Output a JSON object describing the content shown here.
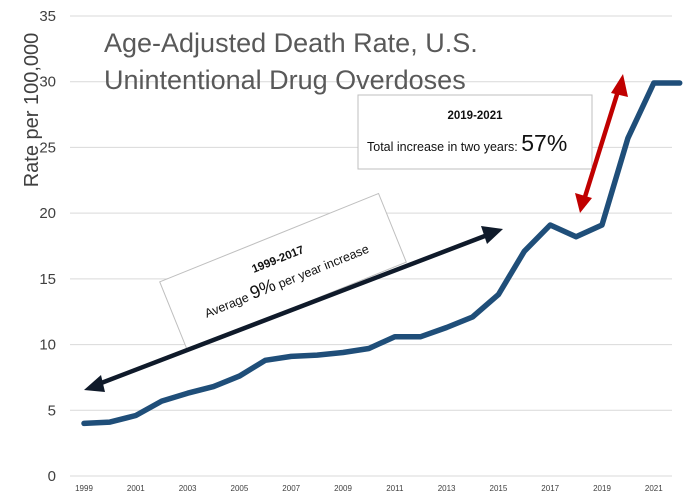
{
  "chart_data": {
    "type": "line",
    "title_lines": [
      "Age-Adjusted Death Rate, U.S.",
      "Unintentional Drug Overdoses"
    ],
    "ylabel": "Rate per 100,000",
    "xlabel": "",
    "ylim": [
      0,
      35
    ],
    "yticks": [
      0,
      5,
      10,
      15,
      20,
      25,
      30,
      35
    ],
    "xticks": [
      1999,
      2001,
      2003,
      2005,
      2007,
      2009,
      2011,
      2013,
      2015,
      2017,
      2019,
      2021
    ],
    "grid": "horizontal",
    "x": [
      1999,
      2000,
      2001,
      2002,
      2003,
      2004,
      2005,
      2006,
      2007,
      2008,
      2009,
      2010,
      2011,
      2012,
      2013,
      2014,
      2015,
      2016,
      2017,
      2018,
      2019,
      2020,
      2021,
      2022
    ],
    "series": [
      {
        "values": [
          4.0,
          4.1,
          4.6,
          5.7,
          6.3,
          6.8,
          7.6,
          8.8,
          9.1,
          9.2,
          9.4,
          9.7,
          10.6,
          10.6,
          11.3,
          12.1,
          13.8,
          17.1,
          19.1,
          18.2,
          19.1,
          25.7,
          29.9,
          29.9
        ],
        "color": "#1f4e79"
      }
    ],
    "annotations": [
      {
        "header": "1999-2017",
        "text_before": "Average ",
        "emphasis": "9%",
        "text_after": " per year increase",
        "arrow_color": "#0f1a2a"
      },
      {
        "header": "2019-2021",
        "text_before": "Total increase in two years: ",
        "emphasis": "57%",
        "arrow_color": "#c00000"
      }
    ]
  }
}
